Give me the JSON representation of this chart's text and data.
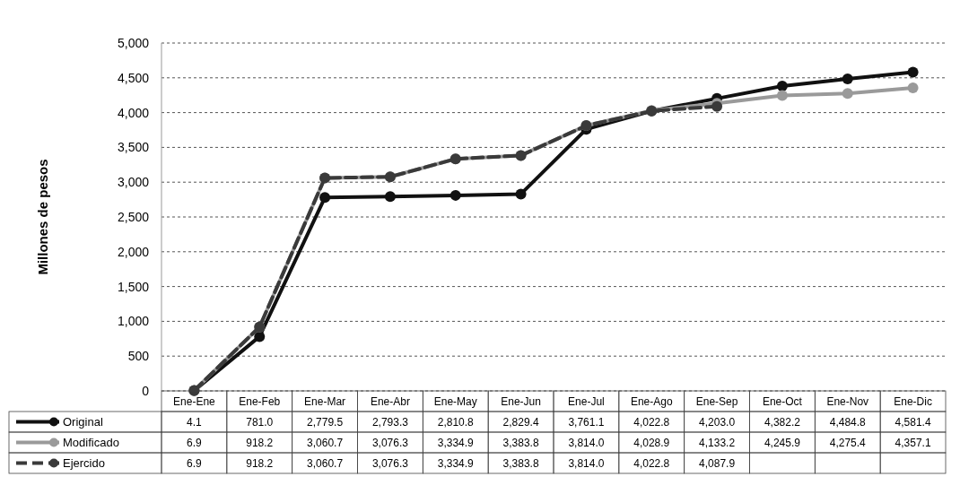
{
  "chart_data": {
    "type": "line",
    "ylabel": "Millones de pesos",
    "categories": [
      "Ene-Ene",
      "Ene-Feb",
      "Ene-Mar",
      "Ene-Abr",
      "Ene-May",
      "Ene-Jun",
      "Ene-Jul",
      "Ene-Ago",
      "Ene-Sep",
      "Ene-Oct",
      "Ene-Nov",
      "Ene-Dic"
    ],
    "ylim": [
      0,
      5000
    ],
    "yticks": [
      0,
      500,
      {
        "value": 1000,
        "label": "1,000"
      },
      {
        "value": 1500,
        "label": "1,500"
      },
      {
        "value": 2000,
        "label": "2,000"
      },
      {
        "value": 2500,
        "label": "2,500"
      },
      {
        "value": 3000,
        "label": "3,000"
      },
      {
        "value": 3500,
        "label": "3,500"
      },
      {
        "value": 4000,
        "label": "4,000"
      },
      {
        "value": 4500,
        "label": "4,500"
      },
      {
        "value": 5000,
        "label": "5,000"
      }
    ],
    "grid": "y",
    "marker": "circle",
    "legend": "bottom left",
    "series": [
      {
        "name": "Original",
        "color": "#111111",
        "line_style": "solid",
        "values": [
          4.1,
          781.0,
          2779.5,
          2793.3,
          2810.8,
          2829.4,
          3761.1,
          4022.8,
          4203.0,
          4382.2,
          4484.8,
          4581.4
        ],
        "value_labels": [
          "4.1",
          "781.0",
          "2,779.5",
          "2,793.3",
          "2,810.8",
          "2,829.4",
          "3,761.1",
          "4,022.8",
          "4,203.0",
          "4,382.2",
          "4,484.8",
          "4,581.4"
        ]
      },
      {
        "name": "Modificado",
        "color": "#9a9a9a",
        "line_style": "solid",
        "values": [
          6.9,
          918.2,
          3060.7,
          3076.3,
          3334.9,
          3383.8,
          3814.0,
          4028.9,
          4133.2,
          4245.9,
          4275.4,
          4357.1
        ],
        "value_labels": [
          "6.9",
          "918.2",
          "3,060.7",
          "3,076.3",
          "3,334.9",
          "3,383.8",
          "3,814.0",
          "4,028.9",
          "4,133.2",
          "4,245.9",
          "4,275.4",
          "4,357.1"
        ]
      },
      {
        "name": "Ejercido",
        "color": "#3a3a3a",
        "line_style": "dashed",
        "values": [
          6.9,
          918.2,
          3060.7,
          3076.3,
          3334.9,
          3383.8,
          3814.0,
          4022.8,
          4087.9,
          null,
          null,
          null
        ],
        "value_labels": [
          "6.9",
          "918.2",
          "3,060.7",
          "3,076.3",
          "3,334.9",
          "3,383.8",
          "3,814.0",
          "4,022.8",
          "4,087.9",
          null,
          null,
          null
        ]
      }
    ]
  }
}
